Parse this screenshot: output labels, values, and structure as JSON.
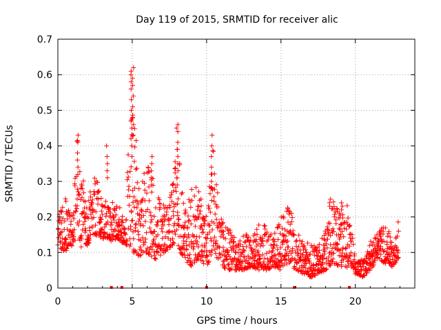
{
  "chart_data": {
    "type": "scatter",
    "title": "Day 119 of 2015, SRMTID for receiver alic",
    "xlabel": "GPS time / hours",
    "ylabel": "SRMTID / TECUs",
    "xlim": [
      0,
      24
    ],
    "ylim": [
      0,
      0.7
    ],
    "xticks": [
      0,
      5,
      10,
      15,
      20
    ],
    "xtick_labels": [
      "0",
      "5",
      "10",
      "15",
      "20"
    ],
    "yticks": [
      0,
      0.1,
      0.2,
      0.3,
      0.4,
      0.5,
      0.6,
      0.7
    ],
    "ytick_labels": [
      "0",
      "0.1",
      "0.2",
      "0.3",
      "0.4",
      "0.5",
      "0.6",
      "0.7"
    ],
    "grid": true,
    "marker": "+",
    "color": "#ff0000",
    "series": [
      {
        "name": "SRMTID",
        "envelope": {
          "x": [
            0.0,
            0.5,
            1.0,
            1.3,
            1.6,
            2.0,
            2.5,
            3.0,
            3.5,
            4.0,
            4.5,
            5.0,
            5.5,
            6.0,
            6.5,
            7.0,
            7.5,
            8.0,
            8.5,
            9.0,
            9.5,
            10.0,
            10.5,
            11.0,
            11.5,
            12.0,
            12.5,
            13.0,
            13.5,
            14.0,
            14.5,
            15.0,
            15.5,
            16.0,
            16.5,
            17.0,
            17.5,
            18.0,
            18.5,
            19.0,
            19.5,
            20.0,
            20.5,
            21.0,
            21.5,
            22.0,
            22.5,
            22.9
          ],
          "low": [
            0.12,
            0.1,
            0.12,
            0.15,
            0.11,
            0.12,
            0.15,
            0.14,
            0.13,
            0.14,
            0.12,
            0.1,
            0.09,
            0.1,
            0.08,
            0.09,
            0.11,
            0.12,
            0.08,
            0.06,
            0.08,
            0.06,
            0.1,
            0.06,
            0.05,
            0.05,
            0.05,
            0.06,
            0.05,
            0.05,
            0.06,
            0.05,
            0.07,
            0.05,
            0.04,
            0.03,
            0.04,
            0.05,
            0.07,
            0.06,
            0.05,
            0.04,
            0.03,
            0.05,
            0.08,
            0.07,
            0.06,
            0.08
          ],
          "high": [
            0.2,
            0.26,
            0.24,
            0.43,
            0.33,
            0.24,
            0.33,
            0.24,
            0.25,
            0.23,
            0.22,
            0.62,
            0.27,
            0.36,
            0.3,
            0.24,
            0.25,
            0.46,
            0.23,
            0.29,
            0.28,
            0.2,
            0.43,
            0.2,
            0.17,
            0.14,
            0.15,
            0.15,
            0.18,
            0.18,
            0.15,
            0.21,
            0.23,
            0.18,
            0.14,
            0.13,
            0.12,
            0.17,
            0.25,
            0.21,
            0.24,
            0.09,
            0.08,
            0.13,
            0.16,
            0.18,
            0.14,
            0.2
          ]
        },
        "spikes": [
          {
            "x": 1.35,
            "y": [
              0.43,
              0.41,
              0.38,
              0.36,
              0.34,
              0.32
            ]
          },
          {
            "x": 3.3,
            "y": [
              0.4,
              0.37,
              0.35,
              0.33,
              0.31
            ]
          },
          {
            "x": 4.95,
            "y": [
              0.61,
              0.6,
              0.58,
              0.56,
              0.53,
              0.5,
              0.47,
              0.45,
              0.42,
              0.4,
              0.37
            ]
          },
          {
            "x": 5.05,
            "y": [
              0.62,
              0.59,
              0.57,
              0.54,
              0.51,
              0.48,
              0.46,
              0.43
            ]
          },
          {
            "x": 6.3,
            "y": [
              0.37,
              0.35,
              0.33,
              0.31,
              0.29,
              0.27
            ]
          },
          {
            "x": 8.05,
            "y": [
              0.46,
              0.44,
              0.41,
              0.39,
              0.37,
              0.35,
              0.33,
              0.31,
              0.29
            ]
          },
          {
            "x": 10.35,
            "y": [
              0.43,
              0.4,
              0.37,
              0.34,
              0.32,
              0.3,
              0.28
            ]
          },
          {
            "x": 18.3,
            "y": [
              0.25,
              0.24,
              0.23
            ]
          },
          {
            "x": 19.1,
            "y": [
              0.24,
              0.23,
              0.22
            ]
          }
        ],
        "axis_markers": [
          3.6,
          4.3,
          10.0,
          15.9,
          19.6
        ]
      }
    ]
  }
}
